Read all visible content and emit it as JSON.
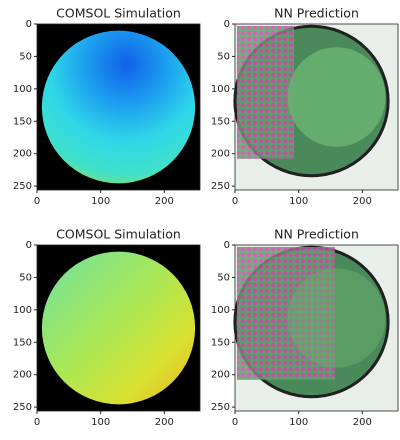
{
  "chart_data": [
    {
      "type": "image",
      "title": "COMSOL Simulation",
      "xlim": [
        0,
        256
      ],
      "ylim": [
        256,
        0
      ],
      "xticks": [
        0,
        100,
        200
      ],
      "yticks": [
        0,
        50,
        100,
        150,
        200,
        250
      ]
    },
    {
      "type": "image",
      "title": "NN Prediction",
      "xlim": [
        0,
        256
      ],
      "ylim": [
        256,
        0
      ],
      "xticks": [
        0,
        100,
        200
      ],
      "yticks": [
        0,
        50,
        100,
        150,
        200,
        250
      ]
    },
    {
      "type": "image",
      "title": "COMSOL Simulation",
      "xlim": [
        0,
        256
      ],
      "ylim": [
        256,
        0
      ],
      "xticks": [
        0,
        100,
        200
      ],
      "yticks": [
        0,
        50,
        100,
        150,
        200,
        250
      ]
    },
    {
      "type": "image",
      "title": "NN Prediction",
      "xlim": [
        0,
        256
      ],
      "ylim": [
        256,
        0
      ],
      "xticks": [
        0,
        100,
        200
      ],
      "yticks": [
        0,
        50,
        100,
        150,
        200,
        250
      ]
    }
  ]
}
